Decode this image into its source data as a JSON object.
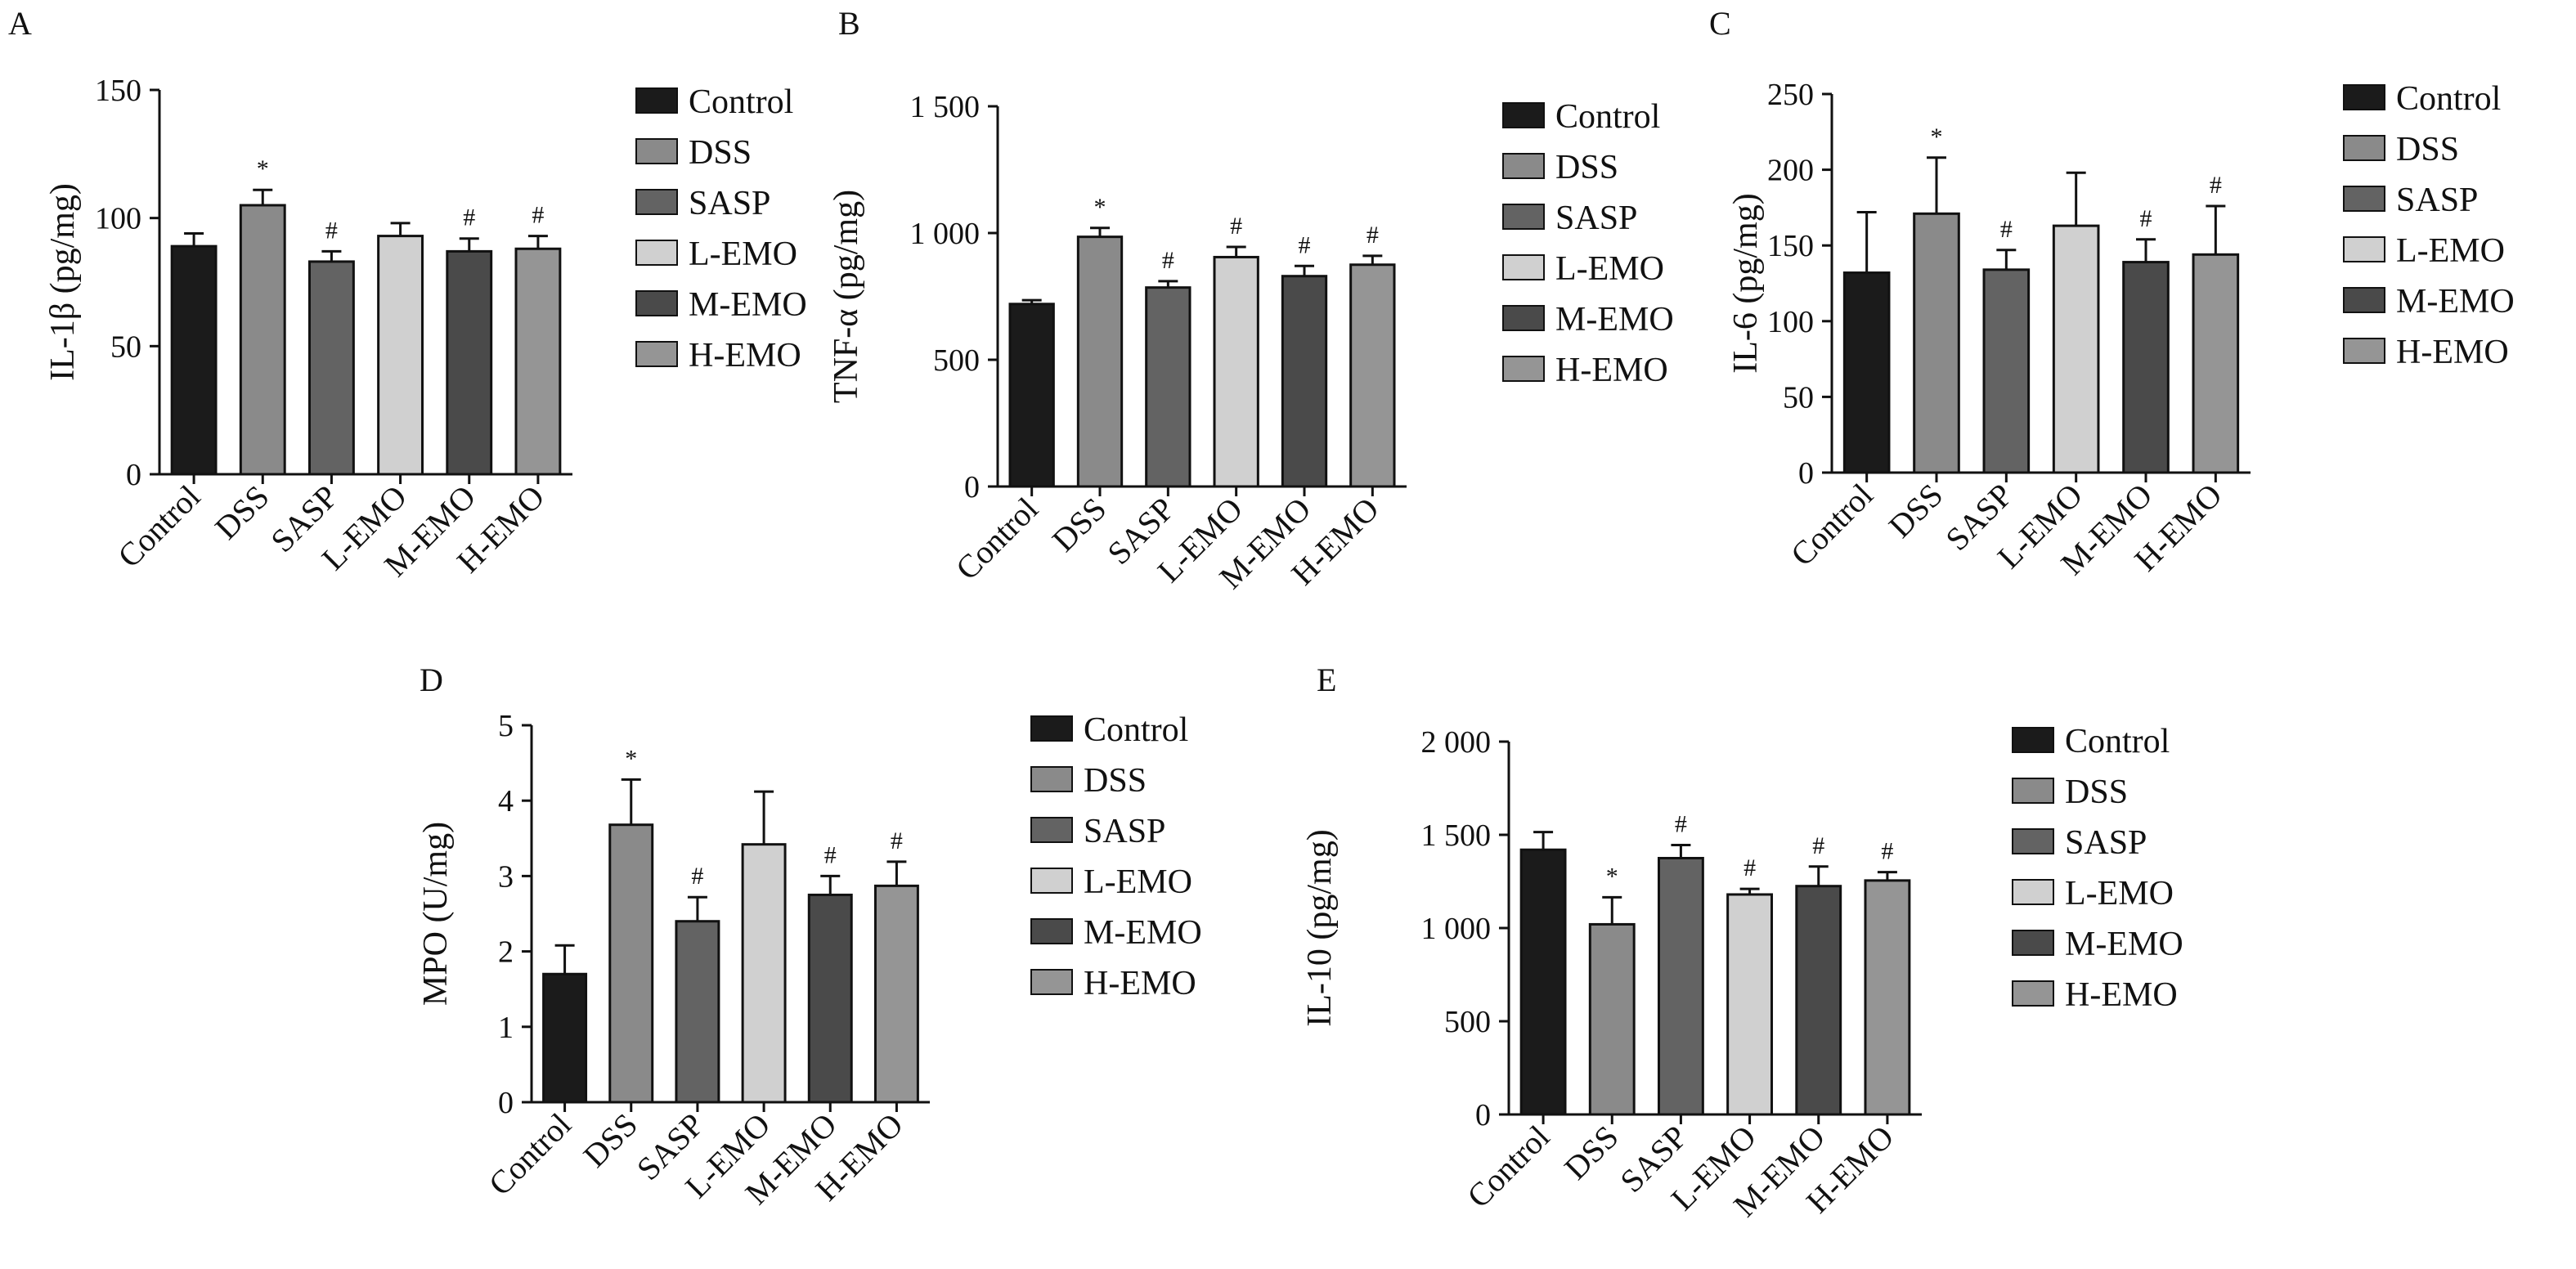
{
  "colors": {
    "Control": "#1b1b1b",
    "DSS": "#8a8a8a",
    "SASP": "#636363",
    "L-EMO": "#d0d0d0",
    "M-EMO": "#4a4a4a",
    "H-EMO": "#959595"
  },
  "chart_data": [
    {
      "type": "bar",
      "panel": "A",
      "categories": [
        "Control",
        "DSS",
        "SASP",
        "L-EMO",
        "M-EMO",
        "H-EMO"
      ],
      "values": [
        89,
        105,
        83,
        93,
        87,
        88
      ],
      "errors": [
        5,
        6,
        4,
        5,
        5,
        5
      ],
      "annotations": [
        "",
        "*",
        "#",
        "",
        "#",
        "#"
      ],
      "ylabel": "IL-1β (pg/mg)",
      "ylim": [
        0,
        150
      ],
      "yticks": [
        0,
        50,
        100,
        150
      ],
      "ytick_labels": [
        "0",
        "50",
        "100",
        "150"
      ],
      "legend": [
        "Control",
        "DSS",
        "SASP",
        "L-EMO",
        "M-EMO",
        "H-EMO"
      ]
    },
    {
      "type": "bar",
      "panel": "B",
      "categories": [
        "Control",
        "DSS",
        "SASP",
        "L-EMO",
        "M-EMO",
        "H-EMO"
      ],
      "values": [
        720,
        985,
        785,
        905,
        830,
        875
      ],
      "errors": [
        15,
        35,
        25,
        40,
        40,
        35
      ],
      "annotations": [
        "",
        "*",
        "#",
        "#",
        "#",
        "#"
      ],
      "ylabel": "TNF-α (pg/mg)",
      "ylim": [
        0,
        1500
      ],
      "yticks": [
        0,
        500,
        1000,
        1500
      ],
      "ytick_labels": [
        "0",
        "500",
        "1 000",
        "1 500"
      ],
      "legend": [
        "Control",
        "DSS",
        "SASP",
        "L-EMO",
        "M-EMO",
        "H-EMO"
      ]
    },
    {
      "type": "bar",
      "panel": "C",
      "categories": [
        "Control",
        "DSS",
        "SASP",
        "L-EMO",
        "M-EMO",
        "H-EMO"
      ],
      "values": [
        132,
        171,
        134,
        163,
        139,
        144
      ],
      "errors": [
        40,
        37,
        13,
        35,
        15,
        32
      ],
      "annotations": [
        "",
        "*",
        "#",
        "",
        "#",
        "#"
      ],
      "ylabel": "IL-6 (pg/mg)",
      "ylim": [
        0,
        250
      ],
      "yticks": [
        0,
        50,
        100,
        150,
        200,
        250
      ],
      "ytick_labels": [
        "0",
        "50",
        "100",
        "150",
        "200",
        "250"
      ],
      "legend": [
        "Control",
        "DSS",
        "SASP",
        "L-EMO",
        "M-EMO",
        "H-EMO"
      ]
    },
    {
      "type": "bar",
      "panel": "D",
      "categories": [
        "Control",
        "DSS",
        "SASP",
        "L-EMO",
        "M-EMO",
        "H-EMO"
      ],
      "values": [
        1.7,
        3.68,
        2.4,
        3.42,
        2.75,
        2.87
      ],
      "errors": [
        0.38,
        0.6,
        0.32,
        0.7,
        0.25,
        0.32
      ],
      "annotations": [
        "",
        "*",
        "#",
        "",
        "#",
        "#"
      ],
      "ylabel": "MPO (U/mg)",
      "ylim": [
        0,
        5
      ],
      "yticks": [
        0,
        1,
        2,
        3,
        4,
        5
      ],
      "ytick_labels": [
        "0",
        "1",
        "2",
        "3",
        "4",
        "5"
      ],
      "legend": [
        "Control",
        "DSS",
        "SASP",
        "L-EMO",
        "M-EMO",
        "H-EMO"
      ]
    },
    {
      "type": "bar",
      "panel": "E",
      "categories": [
        "Control",
        "DSS",
        "SASP",
        "L-EMO",
        "M-EMO",
        "H-EMO"
      ],
      "values": [
        1420,
        1020,
        1375,
        1180,
        1225,
        1255
      ],
      "errors": [
        95,
        145,
        70,
        30,
        105,
        45
      ],
      "annotations": [
        "",
        "*",
        "#",
        "#",
        "#",
        "#"
      ],
      "ylabel": "IL-10 (pg/mg)",
      "ylim": [
        0,
        2000
      ],
      "yticks": [
        0,
        500,
        1000,
        1500,
        2000
      ],
      "ytick_labels": [
        "0",
        "500",
        "1 000",
        "1 500",
        "2 000"
      ],
      "legend": [
        "Control",
        "DSS",
        "SASP",
        "L-EMO",
        "M-EMO",
        "H-EMO"
      ]
    }
  ]
}
